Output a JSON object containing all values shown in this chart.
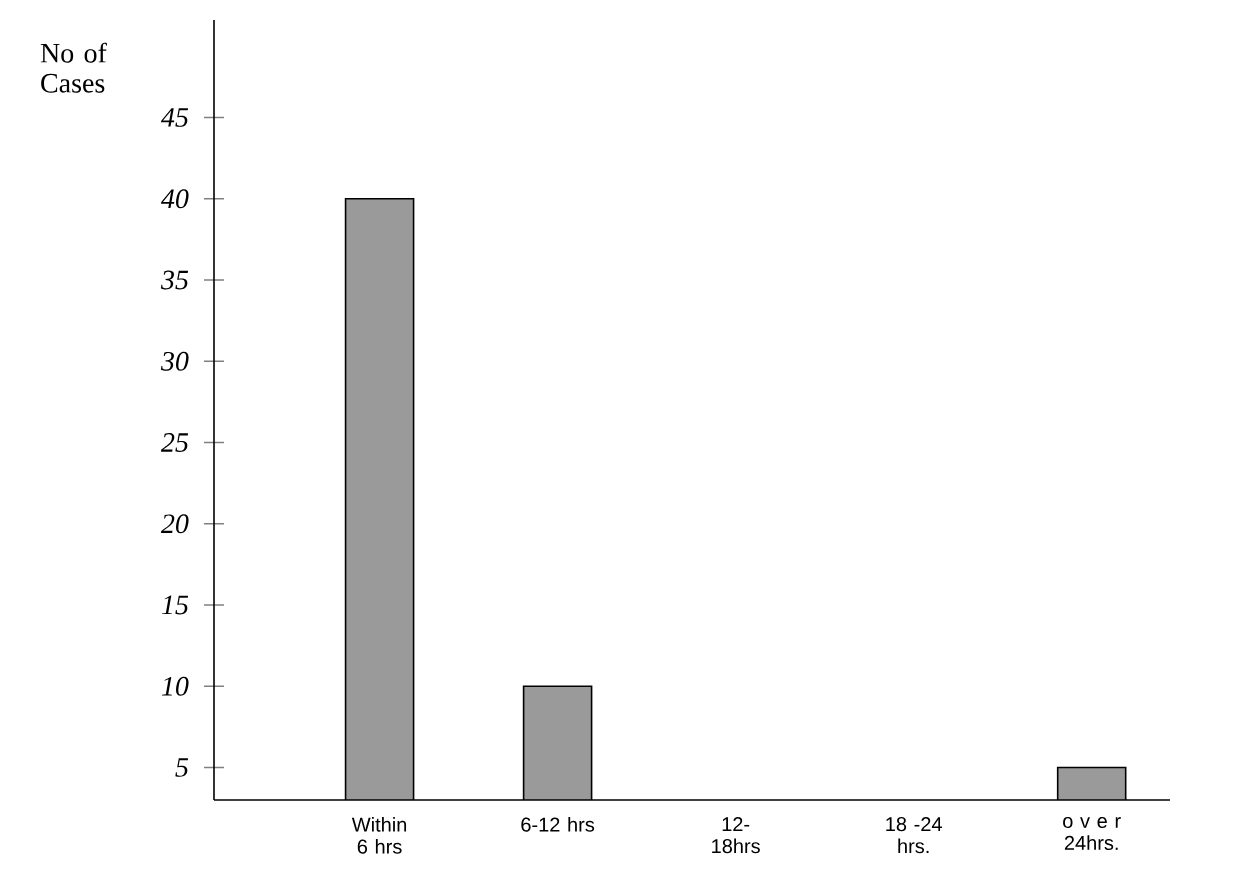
{
  "chart_data": {
    "type": "bar",
    "ylabel": "No of Cases",
    "categories": [
      "Within 6 hrs",
      "6-12 hrs",
      "12- 18hrs",
      "18 -24 hrs.",
      "o v e r 24hrs."
    ],
    "values": [
      40,
      10,
      null,
      null,
      5
    ],
    "color": "#9a9a9a",
    "ylim": [
      3,
      51
    ],
    "yticks": [
      5,
      10,
      15,
      20,
      25,
      30,
      35,
      40,
      45
    ],
    "grid": false
  }
}
